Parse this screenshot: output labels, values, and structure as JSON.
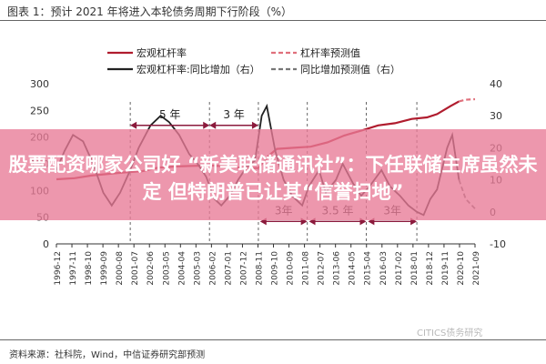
{
  "figure_title": "图表 1：预计 2021 年将进入本轮债务周期下行阶段（%）",
  "banner_text": "股票配资哪家公司好 “新美联储通讯社”：下任联储主席虽然未定 但特朗普已让其“信誉扫地”",
  "source_note": "资料来源：社科院，Wind，中信证券研究部预测",
  "watermark": "CITICS债务研究",
  "colors": {
    "macro_leverage": "#b01c2e",
    "macro_leverage_forecast": "#e0707c",
    "yoy_increase": "#222222",
    "yoy_increase_forecast": "#777777",
    "phase_arrow": "#8b1a3c",
    "banner": "#e87a96"
  },
  "chart_data": {
    "type": "line",
    "legend": [
      {
        "label": "宏观杠杆率",
        "style": "solid",
        "color": "#b01c2e"
      },
      {
        "label": "杠杆率预测值",
        "style": "dashed",
        "color": "#e0707c"
      },
      {
        "label": "宏观杠杆率:同比增加（右）",
        "style": "solid",
        "color": "#222222"
      },
      {
        "label": "同比增加预测值（右）",
        "style": "dashed",
        "color": "#777777"
      }
    ],
    "x_ticks": [
      "1996-12",
      "1997-11",
      "1998-10",
      "1999-09",
      "2000-08",
      "2001-07",
      "2002-06",
      "2003-05",
      "2004-04",
      "2005-03",
      "2006-02",
      "2007-01",
      "2007-12",
      "2008-11",
      "2009-10",
      "2010-09",
      "2011-08",
      "2012-07",
      "2013-06",
      "2014-05",
      "2015-04",
      "2016-03",
      "2017-02",
      "2018-01",
      "2018-12",
      "2019-11",
      "2020-10",
      "2021-09"
    ],
    "y_left": {
      "ticks": [
        "0",
        "50",
        "100",
        "150",
        "200",
        "250",
        "300"
      ],
      "range": [
        0,
        300
      ]
    },
    "y_right": {
      "ticks": [
        "-10",
        "0",
        "10",
        "20",
        "30",
        "40"
      ],
      "range": [
        -10,
        40
      ]
    },
    "series": [
      {
        "name": "宏观杠杆率",
        "axis": "left",
        "points": [
          [
            1996.92,
            121
          ],
          [
            1998,
            123
          ],
          [
            1999,
            128
          ],
          [
            2000,
            131
          ],
          [
            2001,
            134
          ],
          [
            2002,
            136
          ],
          [
            2003,
            143
          ],
          [
            2004,
            145
          ],
          [
            2005,
            146
          ],
          [
            2006,
            147
          ],
          [
            2007,
            145
          ],
          [
            2008,
            142
          ],
          [
            2008.9,
            142
          ],
          [
            2009.5,
            165
          ],
          [
            2010,
            178
          ],
          [
            2011,
            180
          ],
          [
            2012,
            182
          ],
          [
            2013,
            190
          ],
          [
            2014,
            203
          ],
          [
            2015,
            212
          ],
          [
            2016,
            222
          ],
          [
            2017,
            226
          ],
          [
            2018,
            234
          ],
          [
            2018.9,
            237
          ],
          [
            2019.5,
            243
          ],
          [
            2020.3,
            258
          ],
          [
            2020.8,
            267
          ]
        ]
      },
      {
        "name": "杠杆率预测值",
        "axis": "left",
        "points": [
          [
            2020.8,
            267
          ],
          [
            2021.2,
            270
          ],
          [
            2021.75,
            271
          ]
        ]
      },
      {
        "name": "宏观杠杆率:同比增加（右）",
        "axis": "right",
        "points": [
          [
            1996.92,
            13
          ],
          [
            1997.4,
            19
          ],
          [
            1997.9,
            24
          ],
          [
            1998.5,
            22
          ],
          [
            1999.1,
            15
          ],
          [
            1999.7,
            6
          ],
          [
            2000.2,
            2
          ],
          [
            2000.7,
            6
          ],
          [
            2001.3,
            13
          ],
          [
            2001.8,
            20
          ],
          [
            2002.5,
            27
          ],
          [
            2003.1,
            30
          ],
          [
            2003.6,
            28
          ],
          [
            2004.2,
            24
          ],
          [
            2004.8,
            18
          ],
          [
            2005.3,
            15
          ],
          [
            2005.8,
            11
          ],
          [
            2006.3,
            4
          ],
          [
            2006.7,
            2
          ],
          [
            2007.2,
            5
          ],
          [
            2007.7,
            10
          ],
          [
            2008.2,
            14
          ],
          [
            2008.7,
            16
          ],
          [
            2009.1,
            30
          ],
          [
            2009.4,
            33
          ],
          [
            2009.9,
            19
          ],
          [
            2010.4,
            10
          ],
          [
            2010.9,
            5
          ],
          [
            2011.5,
            2
          ],
          [
            2011.9,
            8
          ],
          [
            2012.5,
            13
          ],
          [
            2012.9,
            6
          ],
          [
            2013.5,
            10
          ],
          [
            2013.9,
            15
          ],
          [
            2014.5,
            9
          ],
          [
            2015,
            5
          ],
          [
            2015.5,
            8
          ],
          [
            2016.2,
            13
          ],
          [
            2016.7,
            8
          ],
          [
            2017.3,
            5
          ],
          [
            2017.8,
            2
          ],
          [
            2018.3,
            0
          ],
          [
            2018.7,
            -1
          ],
          [
            2019.1,
            4
          ],
          [
            2019.5,
            7
          ],
          [
            2020.1,
            20
          ],
          [
            2020.4,
            24
          ],
          [
            2020.8,
            10
          ]
        ]
      },
      {
        "name": "同比增加预测值（右）",
        "axis": "right",
        "points": [
          [
            2020.8,
            10
          ],
          [
            2021.2,
            4
          ],
          [
            2021.75,
            1
          ]
        ]
      }
    ],
    "annotations": [
      {
        "text": "5 年",
        "x_from": 2001.3,
        "x_to": 2006.0,
        "y": 27,
        "axis": "right",
        "style": "double-arrow"
      },
      {
        "text": "3 年",
        "x_from": 2006.0,
        "x_to": 2008.9,
        "y": 27,
        "axis": "right",
        "style": "double-arrow"
      },
      {
        "text": "3年",
        "x_from": 2009.0,
        "x_to": 2011.8,
        "y": -3,
        "axis": "right",
        "style": "double-arrow"
      },
      {
        "text": "3.5 年",
        "x_from": 2011.9,
        "x_to": 2015.3,
        "y": -3,
        "axis": "right",
        "style": "double-arrow"
      },
      {
        "text": "3年",
        "x_from": 2015.4,
        "x_to": 2018.3,
        "y": -3,
        "axis": "right",
        "style": "double-arrow"
      }
    ],
    "phase_markers_x": [
      2001.3,
      2006.0,
      2008.9,
      2011.8,
      2015.3,
      2018.3
    ],
    "grid": false
  }
}
